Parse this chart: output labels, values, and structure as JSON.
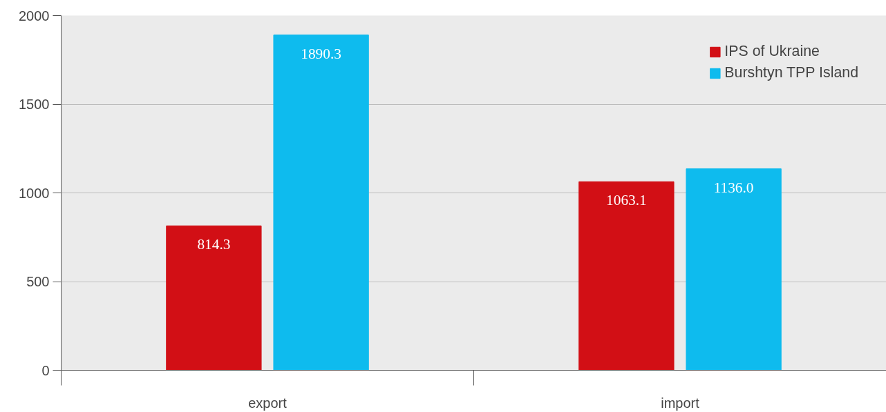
{
  "chart_data": {
    "type": "bar",
    "categories": [
      "export",
      "import"
    ],
    "series": [
      {
        "name": "IPS of Ukraine",
        "color": "#d20f15",
        "values": [
          814.3,
          1063.1
        ],
        "value_labels": [
          "814.3",
          "1063.1"
        ]
      },
      {
        "name": "Burshtyn TPP Island",
        "color": "#0ebbee",
        "values": [
          1890.3,
          1136.0
        ],
        "value_labels": [
          "1890.3",
          "1136.0"
        ]
      }
    ],
    "ylim": [
      0,
      2000
    ],
    "yticks": [
      0,
      500,
      1000,
      1500,
      2000
    ],
    "grid": "y",
    "legend": "top right"
  }
}
